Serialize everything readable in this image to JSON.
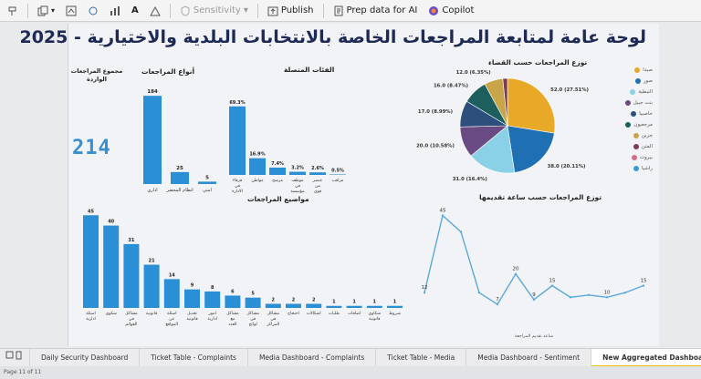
{
  "ribbon": {
    "sensitivity_label": "Sensitivity",
    "publish_label": "Publish",
    "prep_label": "Prep data for AI",
    "copilot_label": "Copilot"
  },
  "dashboard": {
    "title": "لوحة عامة لمتابعة المراجعات الخاصة بالانتخابات البلدية والاختيارية - 2025",
    "total": {
      "label": "مجموع المراجعات الواردة",
      "value": "214"
    },
    "types": {
      "title": "أنواع المراجعات",
      "items": [
        {
          "value": "184",
          "label": "اداري"
        },
        {
          "value": "25",
          "label": "انظام المحضر"
        },
        {
          "value": "5",
          "label": "امني"
        }
      ]
    },
    "categories": {
      "title": "الفئات المتصلة",
      "items": [
        {
          "value": "69.3%",
          "label": "فرقاء في الادارة"
        },
        {
          "value": "16.9%",
          "label": "مواطن"
        },
        {
          "value": "7.4%",
          "label": "مرشح"
        },
        {
          "value": "3.2%",
          "label": "موظف في مؤسسة رسمية"
        },
        {
          "value": "2.6%",
          "label": "عنصر من قوى الأمن"
        },
        {
          "value": "0.5%",
          "label": "مراقب"
        }
      ]
    },
    "pie": {
      "title": "توزع المراجعات حسب القضاء",
      "slices": [
        {
          "label": "52.0 (27.51%)",
          "value": 52.0,
          "color": "#e8a928"
        },
        {
          "label": "38.0 (20.11%)",
          "value": 38.0,
          "color": "#1f6fb3"
        },
        {
          "label": "31.0 (16.4%)",
          "value": 31.0,
          "color": "#8ad0e6"
        },
        {
          "label": "20.0 (10.58%)",
          "value": 20.0,
          "color": "#6a4a82"
        },
        {
          "label": "17.0 (8.99%)",
          "value": 17.0,
          "color": "#2d4f7c"
        },
        {
          "label": "16.0 (8.47%)",
          "value": 16.0,
          "color": "#1d5f5c"
        },
        {
          "label": "12.0 (6.35%)",
          "value": 12.0,
          "color": "#c8a548"
        },
        {
          "label": "",
          "value": 3.0,
          "color": "#7c3a5a"
        }
      ],
      "legend": [
        {
          "label": "صيدا",
          "color": "#e8a928"
        },
        {
          "label": "صور",
          "color": "#1f6fb3"
        },
        {
          "label": "النبطية",
          "color": "#8ad0e6"
        },
        {
          "label": "بنت جبيل",
          "color": "#6a4a82"
        },
        {
          "label": "حاصبيا",
          "color": "#2d4f7c"
        },
        {
          "label": "مرجعيون",
          "color": "#1d5f5c"
        },
        {
          "label": "جزين",
          "color": "#c8a548"
        },
        {
          "label": "المتن",
          "color": "#7c3a5a"
        },
        {
          "label": "بيروت",
          "color": "#d66b8a"
        },
        {
          "label": "راشيا",
          "color": "#3a9ad0"
        }
      ]
    },
    "topics": {
      "title": "مواضيع المراجعات",
      "items": [
        {
          "value": "45",
          "label": "اسئلة ادارية"
        },
        {
          "value": "40",
          "label": "شكوى"
        },
        {
          "value": "31",
          "label": "مشاكل في القوائم"
        },
        {
          "value": "21",
          "label": "قانونية"
        },
        {
          "value": "14",
          "label": "اسئلة عن المواقع"
        },
        {
          "value": "9",
          "label": "تعديل قانونية"
        },
        {
          "value": "8",
          "label": "امور ادارية"
        },
        {
          "value": "6",
          "label": "مشاكل مع العدد"
        },
        {
          "value": "5",
          "label": "مشاكل في لوائح"
        },
        {
          "value": "2",
          "label": "مشاكل في المراكز"
        },
        {
          "value": "2",
          "label": "احتجاج"
        },
        {
          "value": "2",
          "label": "اشكالات"
        },
        {
          "value": "1",
          "label": "طلبات"
        },
        {
          "value": "1",
          "label": "اضافات"
        },
        {
          "value": "1",
          "label": "شكاوى قانونية"
        },
        {
          "value": "1",
          "label": "شروط"
        }
      ]
    },
    "hours": {
      "title": "توزع المراجعات حسب ساعة تقديمها",
      "xlabel": "ساعة تقديم المراجعة",
      "points": [
        {
          "x": 1,
          "y": 12,
          "label": "12"
        },
        {
          "x": 2,
          "y": 45,
          "label": "45"
        },
        {
          "x": 3,
          "y": 38,
          "label": ""
        },
        {
          "x": 4,
          "y": 12,
          "label": ""
        },
        {
          "x": 5,
          "y": 7,
          "label": "7"
        },
        {
          "x": 6,
          "y": 20,
          "label": "20"
        },
        {
          "x": 7,
          "y": 9,
          "label": "9"
        },
        {
          "x": 8,
          "y": 15,
          "label": "15"
        },
        {
          "x": 9,
          "y": 10,
          "label": ""
        },
        {
          "x": 10,
          "y": 11,
          "label": ""
        },
        {
          "x": 11,
          "y": 10,
          "label": "10"
        },
        {
          "x": 12,
          "y": 12,
          "label": ""
        },
        {
          "x": 13,
          "y": 15,
          "label": "15"
        }
      ]
    }
  },
  "tabs": [
    {
      "label": "Daily Security Dashboard"
    },
    {
      "label": "Ticket Table - Complaints"
    },
    {
      "label": "Media Dashboard - Complaints"
    },
    {
      "label": "Ticket Table - Media"
    },
    {
      "label": "Media Dashboard - Sentiment"
    },
    {
      "label": "New Aggregated Dashboard"
    }
  ],
  "status": {
    "page": "Page 11 of 11"
  },
  "colors": {
    "accent": "#2b8fd6",
    "title": "#1d2a55",
    "line": "#5aa8dc"
  }
}
